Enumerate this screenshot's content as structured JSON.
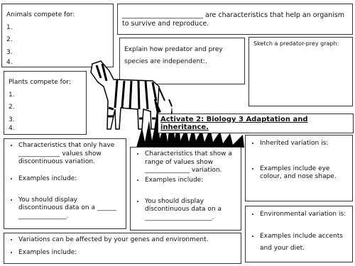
{
  "animals": {
    "title": "Animals compete for:",
    "items": [
      "1.",
      "2.",
      "3.",
      "4."
    ]
  },
  "adaptation": {
    "text": "________________________ are characteristics that help an organism to survive and reproduce."
  },
  "predator": {
    "text": "Explain how predator and prey species are independent:."
  },
  "graph": {
    "text": "Sketch a predator-prey graph:"
  },
  "plants": {
    "title": "Plants compete for:",
    "items": [
      "1.",
      "2.",
      "3.",
      "4."
    ]
  },
  "title": "Activate 2: Biology 3 Adaptation and inheritance.",
  "discontinuous": {
    "bullets": [
      "Characteristics that only have _____________ values show discontinuous variation.",
      "Examples include:",
      "You should display discontinuous data on a ______ _______________."
    ]
  },
  "continuous": {
    "bullets": [
      "Characteristics that show a range of values show ______________ variation.",
      "Examples include:",
      "You should display discontinuous data on a _____________________."
    ]
  },
  "inherited": {
    "bullets": [
      "Inherited variation is:",
      "Examples include eye colour, and nose shape."
    ]
  },
  "environmental": {
    "bullets": [
      "Environmental variation is:",
      "Examples include accents and your diet."
    ]
  },
  "variation": {
    "bullets": [
      "Variations can be affected by your genes and environment.",
      "Examples include:"
    ]
  }
}
